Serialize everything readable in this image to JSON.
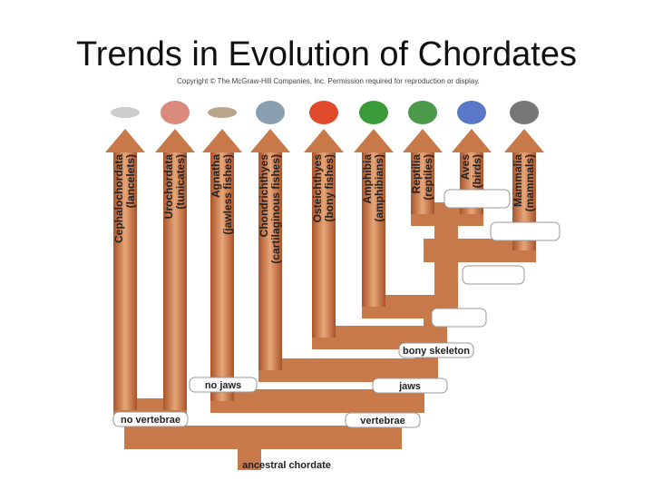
{
  "header": {
    "title": "Trends in Evolution of Chordates",
    "copyright": "Copyright © The McGraw-Hill Companies, Inc. Permission required for reproduction or display."
  },
  "groups": [
    {
      "name": "Cephalochordata",
      "common": "(lancelets)"
    },
    {
      "name": "Urochordata",
      "common": "(tunicates)"
    },
    {
      "name": "Agnatha",
      "common": "(jawless fishes)"
    },
    {
      "name": "Chondrichthyes",
      "common": "(cartilaginous fishes)"
    },
    {
      "name": "Osteichthyes",
      "common": "(bony fishes)"
    },
    {
      "name": "Amphibia",
      "common": "(amphibians)"
    },
    {
      "name": "Reptilia",
      "common": "(reptiles)"
    },
    {
      "name": "Aves",
      "common": "(birds)"
    },
    {
      "name": "Mammalia",
      "common": "(mammals)"
    }
  ],
  "traits": {
    "no_vertebrae": "no vertebrae",
    "vertebrae": "vertebrae",
    "no_jaws": "no jaws",
    "jaws": "jaws",
    "bony_skeleton": "bony skeleton"
  },
  "root": "ancestral chordate"
}
